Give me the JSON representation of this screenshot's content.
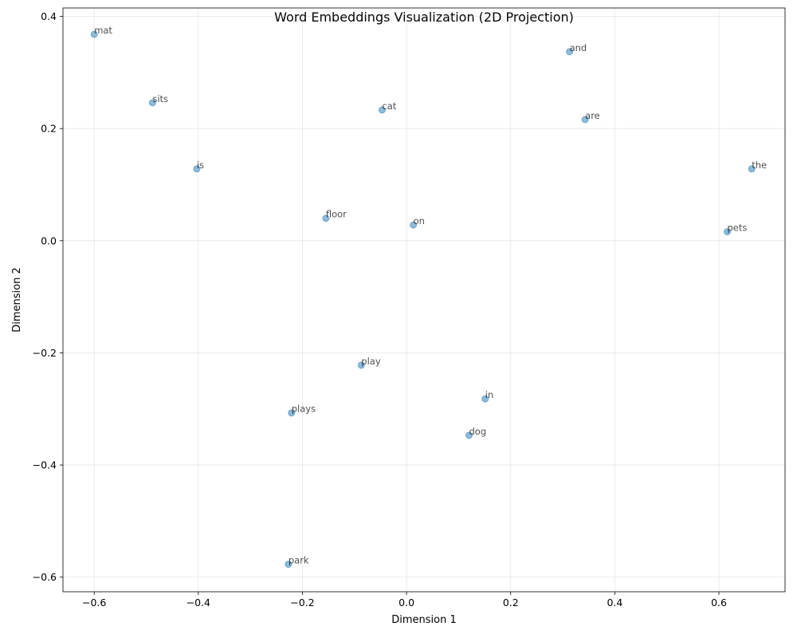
{
  "chart_data": {
    "type": "scatter",
    "title": "Word Embeddings Visualization (2D Projection)",
    "xlabel": "Dimension 1",
    "ylabel": "Dimension 2",
    "xlim": [
      -0.66,
      0.727
    ],
    "ylim": [
      -0.626,
      0.415
    ],
    "xticks": [
      -0.6,
      -0.4,
      -0.2,
      0.0,
      0.2,
      0.4,
      0.6
    ],
    "yticks": [
      -0.6,
      -0.4,
      -0.2,
      0.0,
      0.2,
      0.4
    ],
    "xtick_labels": [
      "−0.6",
      "−0.4",
      "−0.2",
      "0.0",
      "0.2",
      "0.4",
      "0.6"
    ],
    "ytick_labels": [
      "−0.6",
      "−0.4",
      "−0.2",
      "0.0",
      "0.2",
      "0.4"
    ],
    "grid": true,
    "marker_color": "#1f77b4",
    "points": [
      {
        "label": "mat",
        "x": -0.6,
        "y": 0.368
      },
      {
        "label": "and",
        "x": 0.313,
        "y": 0.337
      },
      {
        "label": "sits",
        "x": -0.488,
        "y": 0.246
      },
      {
        "label": "cat",
        "x": -0.047,
        "y": 0.233
      },
      {
        "label": "are",
        "x": 0.343,
        "y": 0.216
      },
      {
        "label": "is",
        "x": -0.403,
        "y": 0.128
      },
      {
        "label": "the",
        "x": 0.663,
        "y": 0.128
      },
      {
        "label": "floor",
        "x": -0.155,
        "y": 0.04
      },
      {
        "label": "on",
        "x": 0.013,
        "y": 0.028
      },
      {
        "label": "pets",
        "x": 0.616,
        "y": 0.016
      },
      {
        "label": "play",
        "x": -0.087,
        "y": -0.222
      },
      {
        "label": "in",
        "x": 0.151,
        "y": -0.282
      },
      {
        "label": "plays",
        "x": -0.221,
        "y": -0.307
      },
      {
        "label": "dog",
        "x": 0.12,
        "y": -0.347
      },
      {
        "label": "park",
        "x": -0.227,
        "y": -0.577
      }
    ]
  }
}
